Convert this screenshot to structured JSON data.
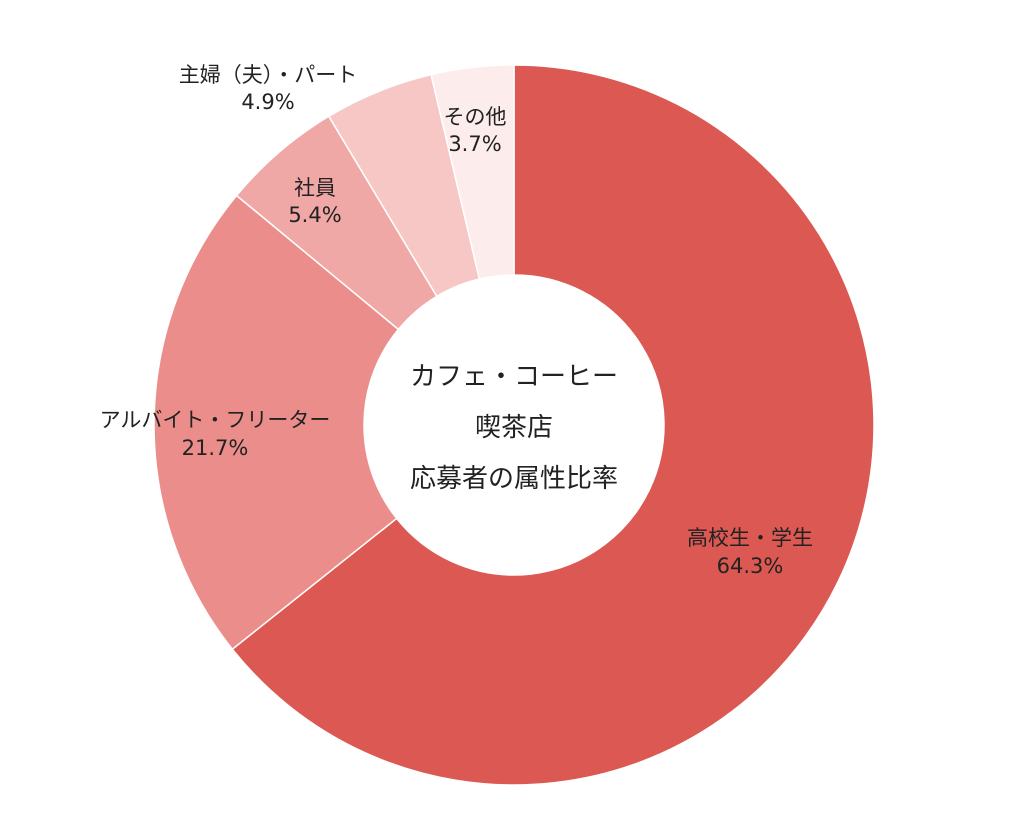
{
  "chart_data": {
    "type": "donut",
    "center_title_lines": [
      "カフェ・コーヒー",
      "喫茶店",
      "応募者の属性比率"
    ],
    "slices": [
      {
        "label": "高校生・学生",
        "value": 64.3,
        "value_text": "64.3%",
        "color": "#DC5852"
      },
      {
        "label": "アルバイト・フリーター",
        "value": 21.7,
        "value_text": "21.7%",
        "color": "#EB8E8B"
      },
      {
        "label": "社員",
        "value": 5.4,
        "value_text": "5.4%",
        "color": "#EFA8A6"
      },
      {
        "label": "主婦（夫）・パート",
        "value": 4.9,
        "value_text": "4.9%",
        "color": "#F7C7C5"
      },
      {
        "label": "その他",
        "value": 3.7,
        "value_text": "3.7%",
        "color": "#FDECEC"
      }
    ],
    "start": "top",
    "direction": "clockwise"
  }
}
